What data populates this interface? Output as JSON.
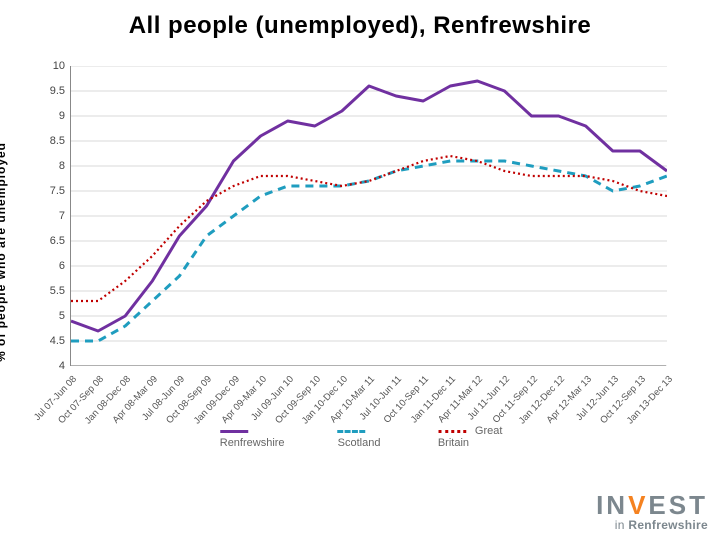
{
  "title": "All people (unemployed), Renfrewshire",
  "ylabel": "% of people who are unemployed",
  "chart": {
    "type": "line",
    "background": "#ffffff",
    "grid_color": "#d9d9d9",
    "ylim": [
      4,
      10
    ],
    "ytick_step": 0.5,
    "yticks": [
      "4",
      "4.5",
      "5",
      "5.5",
      "6",
      "6.5",
      "7",
      "7.5",
      "8",
      "8.5",
      "9",
      "9.5",
      "10"
    ],
    "xlabels": [
      "Jul 07-Jun 08",
      "Oct 07-Sep 08",
      "Jan 08-Dec 08",
      "Apr 08-Mar 09",
      "Jul 08-Jun 09",
      "Oct 08-Sep 09",
      "Jan 09-Dec 09",
      "Apr 09-Mar 10",
      "Jul 09-Jun 10",
      "Oct 09-Sep 10",
      "Jan 10-Dec 10",
      "Apr 10-Mar 11",
      "Jul 10-Jun 11",
      "Oct 10-Sep 11",
      "Jan 11-Dec 11",
      "Apr 11-Mar 12",
      "Jul 11-Jun 12",
      "Oct 11-Sep 12",
      "Jan 12-Dec 12",
      "Apr 12-Mar 13",
      "Jul 12-Jun 13",
      "Oct 12-Sep 13",
      "Jan 13-Dec 13"
    ],
    "series": [
      {
        "name": "Renfrewshire",
        "color": "#7030a0",
        "line_width": 3,
        "dash": "none",
        "values": [
          4.9,
          4.7,
          5.0,
          5.7,
          6.6,
          7.2,
          8.1,
          8.6,
          8.9,
          8.8,
          9.1,
          9.6,
          9.4,
          9.3,
          9.6,
          9.7,
          9.5,
          9.0,
          9.0,
          8.8,
          8.3,
          8.3,
          7.9
        ]
      },
      {
        "name": "Scotland",
        "color": "#1f9dbf",
        "line_width": 3,
        "dash": "8,6",
        "values": [
          4.5,
          4.5,
          4.8,
          5.3,
          5.8,
          6.6,
          7.0,
          7.4,
          7.6,
          7.6,
          7.6,
          7.7,
          7.9,
          8.0,
          8.1,
          8.1,
          8.1,
          8.0,
          7.9,
          7.8,
          7.5,
          7.6,
          7.8
        ]
      },
      {
        "name": "Great Britain",
        "color": "#c00000",
        "line_width": 2.2,
        "dash": "2,3",
        "values": [
          5.3,
          5.3,
          5.7,
          6.2,
          6.8,
          7.3,
          7.6,
          7.8,
          7.8,
          7.7,
          7.6,
          7.7,
          7.9,
          8.1,
          8.2,
          8.1,
          7.9,
          7.8,
          7.8,
          7.8,
          7.7,
          7.5,
          7.4
        ]
      }
    ]
  },
  "legend": {
    "items": [
      {
        "label": "Renfrewshire",
        "color": "#7030a0",
        "style": "solid"
      },
      {
        "label": "Scotland",
        "color": "#1f9dbf",
        "style": "dashed"
      },
      {
        "label": "Great Britain",
        "color": "#c00000",
        "style": "dotted"
      }
    ]
  },
  "logo": {
    "brand_prefix": "IN",
    "brand_v": "V",
    "brand_suffix": "EST",
    "sub_in": "in ",
    "sub_ren": "Renfrewshire",
    "accent": "#f58220",
    "grey": "#7c878e"
  }
}
